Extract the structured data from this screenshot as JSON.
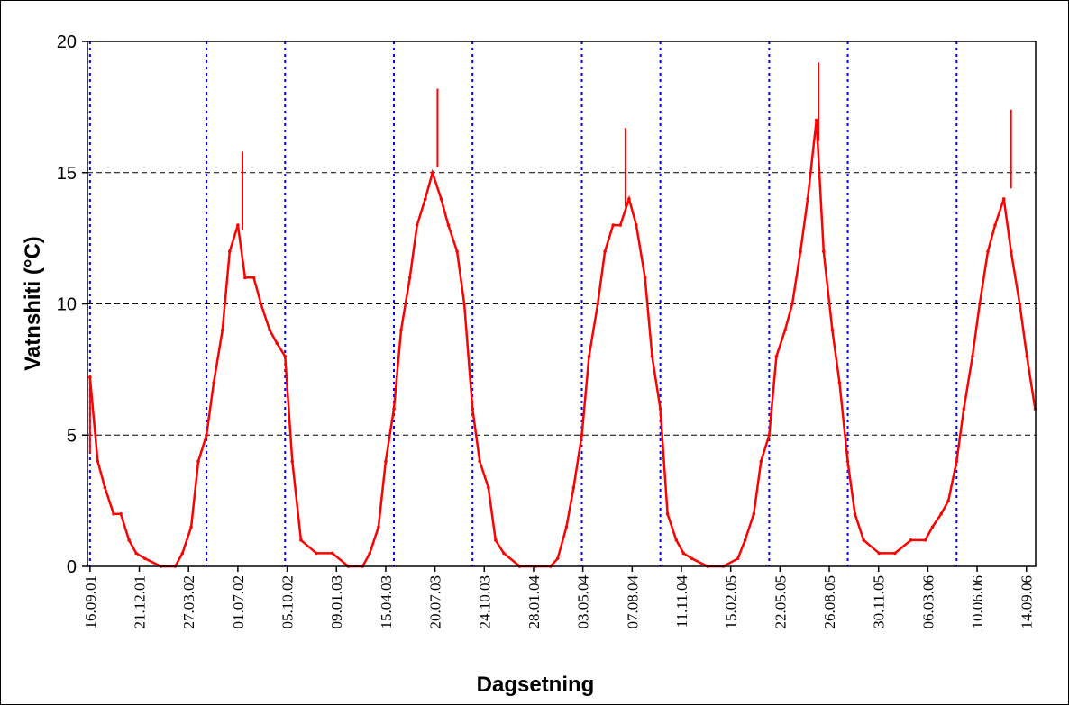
{
  "chart_data": {
    "type": "line",
    "xlabel": "Dagsetning",
    "ylabel": "Vatnshiti (°C)",
    "ylim": [
      0,
      20
    ],
    "yticks": [
      0,
      5,
      10,
      15,
      20
    ],
    "xlim": [
      "2001-09-11",
      "2006-10-02"
    ],
    "xtick_dates": [
      "2001-09-16",
      "2001-12-21",
      "2002-03-27",
      "2002-07-01",
      "2002-10-05",
      "2003-01-09",
      "2003-04-15",
      "2003-07-20",
      "2003-10-24",
      "2004-01-28",
      "2004-05-03",
      "2004-08-07",
      "2004-11-11",
      "2005-02-15",
      "2005-05-22",
      "2005-08-26",
      "2005-11-30",
      "2006-03-06",
      "2006-06-10",
      "2006-09-14"
    ],
    "xtick_labels": [
      "16.09.01",
      "21.12.01",
      "27.03.02",
      "01.07.02",
      "05.10.02",
      "09.01.03",
      "15.04.03",
      "20.07.03",
      "24.10.03",
      "28.01.04",
      "03.05.04",
      "07.08.04",
      "11.11.04",
      "15.02.05",
      "22.05.05",
      "26.08.05",
      "30.11.05",
      "06.03.06",
      "10.06.06",
      "14.09.06"
    ],
    "grid": {
      "horizontal": "dashed gray at 5, 10, 15",
      "vertical": "none"
    },
    "vertical_markers": [
      "2001-09-16",
      "2002-05-01",
      "2002-10-01",
      "2003-05-01",
      "2003-10-01",
      "2004-05-01",
      "2004-10-01",
      "2005-05-01",
      "2005-10-01",
      "2006-05-01"
    ],
    "series": [
      {
        "color": "#ff0000",
        "x": [
          "2001-09-16",
          "2001-10-01",
          "2001-10-15",
          "2001-11-01",
          "2001-11-15",
          "2001-12-01",
          "2001-12-15",
          "2002-01-01",
          "2002-02-01",
          "2002-03-01",
          "2002-03-15",
          "2002-04-01",
          "2002-04-15",
          "2002-05-01",
          "2002-05-15",
          "2002-06-01",
          "2002-06-15",
          "2002-07-01",
          "2002-07-15",
          "2002-08-01",
          "2002-08-15",
          "2002-09-01",
          "2002-09-15",
          "2002-10-01",
          "2002-10-15",
          "2002-11-01",
          "2002-12-01",
          "2003-01-01",
          "2003-02-01",
          "2003-03-01",
          "2003-03-15",
          "2003-04-01",
          "2003-04-15",
          "2003-05-01",
          "2003-05-15",
          "2003-06-01",
          "2003-06-15",
          "2003-07-01",
          "2003-07-15",
          "2003-08-01",
          "2003-08-15",
          "2003-09-01",
          "2003-09-15",
          "2003-10-01",
          "2003-10-15",
          "2003-11-01",
          "2003-11-15",
          "2003-12-01",
          "2004-01-01",
          "2004-02-01",
          "2004-03-01",
          "2004-03-15",
          "2004-04-01",
          "2004-04-15",
          "2004-05-01",
          "2004-05-15",
          "2004-06-01",
          "2004-06-15",
          "2004-07-01",
          "2004-07-15",
          "2004-08-01",
          "2004-08-15",
          "2004-09-01",
          "2004-09-15",
          "2004-10-01",
          "2004-10-15",
          "2004-11-01",
          "2004-11-15",
          "2004-12-01",
          "2005-01-01",
          "2005-02-01",
          "2005-03-01",
          "2005-03-15",
          "2005-04-01",
          "2005-04-15",
          "2005-05-01",
          "2005-05-15",
          "2005-06-01",
          "2005-06-15",
          "2005-07-01",
          "2005-07-15",
          "2005-08-01",
          "2005-08-15",
          "2005-09-01",
          "2005-09-15",
          "2005-10-01",
          "2005-10-15",
          "2005-11-01",
          "2005-12-01",
          "2006-01-01",
          "2006-02-01",
          "2006-03-01",
          "2006-03-15",
          "2006-04-01",
          "2006-04-15",
          "2006-05-01",
          "2006-05-15",
          "2006-06-01",
          "2006-06-15",
          "2006-07-01",
          "2006-07-15",
          "2006-08-01",
          "2006-08-15",
          "2006-09-01",
          "2006-09-15",
          "2006-10-01"
        ],
        "y": [
          7.2,
          4.0,
          3.0,
          2.0,
          2.0,
          1.0,
          0.5,
          0.3,
          0.0,
          0.0,
          0.5,
          1.5,
          4.0,
          5.0,
          7.0,
          9.0,
          12.0,
          13.0,
          11.0,
          11.0,
          10.0,
          9.0,
          8.5,
          8.0,
          4.0,
          1.0,
          0.5,
          0.5,
          0.0,
          0.0,
          0.5,
          1.5,
          4.0,
          6.0,
          9.0,
          11.0,
          13.0,
          14.0,
          15.0,
          14.0,
          13.0,
          12.0,
          10.0,
          6.0,
          4.0,
          3.0,
          1.0,
          0.5,
          0.0,
          0.0,
          0.0,
          0.3,
          1.5,
          3.0,
          5.0,
          8.0,
          10.0,
          12.0,
          13.0,
          13.0,
          14.0,
          13.0,
          11.0,
          8.0,
          6.0,
          2.0,
          1.0,
          0.5,
          0.3,
          0.0,
          0.0,
          0.3,
          1.0,
          2.0,
          4.0,
          5.0,
          8.0,
          9.0,
          10.0,
          12.0,
          14.0,
          17.0,
          12.0,
          9.0,
          7.0,
          4.0,
          2.0,
          1.0,
          0.5,
          0.5,
          1.0,
          1.0,
          1.5,
          2.0,
          2.5,
          4.0,
          6.0,
          8.0,
          10.0,
          12.0,
          13.0,
          14.0,
          12.0,
          10.0,
          8.0,
          6.0
        ],
        "peak_annotations": [
          {
            "x": "2001-09-16",
            "y": 7.3
          },
          {
            "x": "2002-07-10",
            "y": 15.8
          },
          {
            "x": "2003-07-25",
            "y": 18.2
          },
          {
            "x": "2004-07-25",
            "y": 16.7
          },
          {
            "x": "2005-08-05",
            "y": 19.2
          },
          {
            "x": "2006-08-15",
            "y": 17.4
          }
        ]
      }
    ]
  }
}
